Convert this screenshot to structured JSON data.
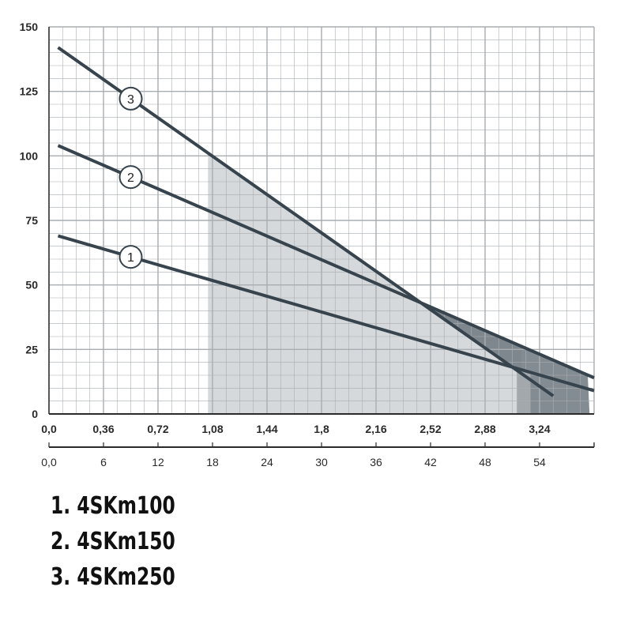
{
  "chart_data": {
    "type": "line",
    "title": "",
    "xlabel": "",
    "ylabel": "",
    "ylim": [
      0,
      150
    ],
    "xlim_secondary": [
      0,
      60
    ],
    "xlim_primary": [
      0,
      3.6
    ],
    "grid": true,
    "y_ticks": [
      "0",
      "25",
      "50",
      "75",
      "100",
      "125",
      "150"
    ],
    "x_ticks_primary": [
      "0,0",
      "0,36",
      "0,72",
      "1,08",
      "1,44",
      "1,8",
      "2,16",
      "2,52",
      "2,88",
      "3,24"
    ],
    "x_ticks_secondary": [
      "0,0",
      "6",
      "12",
      "18",
      "24",
      "30",
      "36",
      "42",
      "48",
      "54"
    ],
    "series": [
      {
        "label": "1",
        "x": [
          1,
          60
        ],
        "y": [
          69,
          9
        ]
      },
      {
        "label": "2",
        "x": [
          1,
          60
        ],
        "y": [
          104,
          14
        ]
      },
      {
        "label": "3",
        "x": [
          1,
          55.5
        ],
        "y": [
          142,
          7
        ]
      }
    ],
    "shaded_regions": [
      {
        "shade": "light",
        "x_start": 17.5,
        "x_end": 52,
        "color": "#d6d9dc"
      },
      {
        "shade": "medium",
        "x_start": 51.5,
        "x_end": 53,
        "color": "#a3a8ad"
      },
      {
        "shade": "dark",
        "x_start": 40.8,
        "x_end": 59.5,
        "color": "#6e7880"
      }
    ],
    "colors": {
      "line": "#37444d",
      "grid": "#a9adb0",
      "axis": "#2b2b2b"
    }
  },
  "legend": {
    "items": [
      "1. 4SKm100",
      "2. 4SKm150",
      "3. 4SKm250"
    ]
  }
}
